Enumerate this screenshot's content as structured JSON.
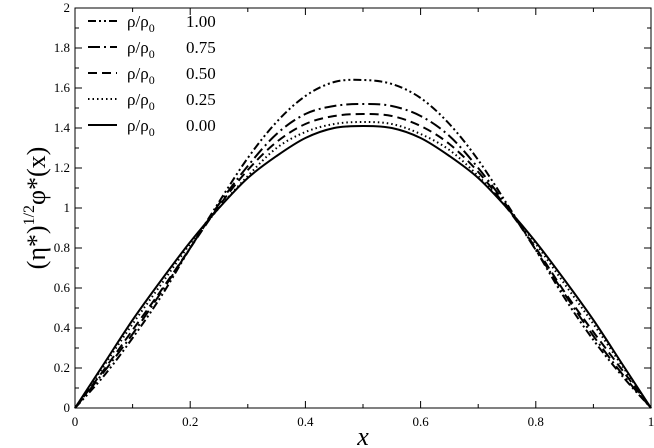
{
  "chart_data": {
    "type": "line",
    "xlabel": "x",
    "ylabel_parts": [
      "(η*)",
      "1/2",
      "φ*(x)"
    ],
    "xlim": [
      0,
      1
    ],
    "ylim": [
      0,
      2
    ],
    "xticks": [
      "0",
      "0.2",
      "0.4",
      "0.6",
      "0.8",
      "1"
    ],
    "yticks": [
      "0",
      "0.2",
      "0.4",
      "0.6",
      "0.8",
      "1",
      "1.2",
      "1.4",
      "1.6",
      "1.8",
      "2"
    ],
    "grid": false,
    "legend_position": "top-left",
    "series": [
      {
        "legend": {
          "base": "ρ/ρ",
          "sub": "0",
          "value": "1.00"
        },
        "dash": "dash-dot-dot",
        "x": [
          0,
          0.05,
          0.1,
          0.15,
          0.2,
          0.25,
          0.3,
          0.35,
          0.4,
          0.45,
          0.5,
          0.55,
          0.6,
          0.65,
          0.7,
          0.75,
          0.8,
          0.85,
          0.9,
          0.95,
          1
        ],
        "y": [
          0,
          0.16,
          0.35,
          0.56,
          0.8,
          1.03,
          1.25,
          1.43,
          1.56,
          1.63,
          1.64,
          1.62,
          1.55,
          1.42,
          1.24,
          1.02,
          0.79,
          0.55,
          0.34,
          0.16,
          0
        ]
      },
      {
        "legend": {
          "base": "ρ/ρ",
          "sub": "0",
          "value": "0.75"
        },
        "dash": "dash-dot",
        "x": [
          0,
          0.05,
          0.1,
          0.15,
          0.2,
          0.25,
          0.3,
          0.35,
          0.4,
          0.45,
          0.5,
          0.55,
          0.6,
          0.65,
          0.7,
          0.75,
          0.8,
          0.85,
          0.9,
          0.95,
          1
        ],
        "y": [
          0,
          0.18,
          0.37,
          0.58,
          0.8,
          1.02,
          1.21,
          1.37,
          1.47,
          1.51,
          1.52,
          1.51,
          1.46,
          1.36,
          1.2,
          1.01,
          0.79,
          0.57,
          0.36,
          0.17,
          0
        ]
      },
      {
        "legend": {
          "base": "ρ/ρ",
          "sub": "0",
          "value": "0.50"
        },
        "dash": "dashed",
        "x": [
          0,
          0.05,
          0.1,
          0.15,
          0.2,
          0.25,
          0.3,
          0.35,
          0.4,
          0.45,
          0.5,
          0.55,
          0.6,
          0.65,
          0.7,
          0.75,
          0.8,
          0.85,
          0.9,
          0.95,
          1
        ],
        "y": [
          0,
          0.19,
          0.39,
          0.59,
          0.8,
          1.01,
          1.19,
          1.33,
          1.42,
          1.46,
          1.47,
          1.46,
          1.41,
          1.32,
          1.18,
          1.0,
          0.8,
          0.58,
          0.38,
          0.19,
          0
        ]
      },
      {
        "legend": {
          "base": "ρ/ρ",
          "sub": "0",
          "value": "0.25"
        },
        "dash": "dotted",
        "x": [
          0,
          0.05,
          0.1,
          0.15,
          0.2,
          0.25,
          0.3,
          0.35,
          0.4,
          0.45,
          0.5,
          0.55,
          0.6,
          0.65,
          0.7,
          0.75,
          0.8,
          0.85,
          0.9,
          0.95,
          1
        ],
        "y": [
          0,
          0.21,
          0.42,
          0.62,
          0.82,
          1.0,
          1.16,
          1.3,
          1.38,
          1.42,
          1.43,
          1.42,
          1.37,
          1.29,
          1.16,
          1.0,
          0.82,
          0.62,
          0.42,
          0.21,
          0
        ]
      },
      {
        "legend": {
          "base": "ρ/ρ",
          "sub": "0",
          "value": "0.00"
        },
        "dash": "solid",
        "x": [
          0,
          0.05,
          0.1,
          0.15,
          0.2,
          0.25,
          0.3,
          0.35,
          0.4,
          0.45,
          0.5,
          0.55,
          0.6,
          0.65,
          0.7,
          0.75,
          0.8,
          0.85,
          0.9,
          0.95,
          1
        ],
        "y": [
          0,
          0.22,
          0.44,
          0.64,
          0.83,
          1.0,
          1.15,
          1.26,
          1.35,
          1.4,
          1.41,
          1.4,
          1.35,
          1.26,
          1.15,
          1.0,
          0.83,
          0.64,
          0.44,
          0.22,
          0
        ]
      }
    ]
  }
}
